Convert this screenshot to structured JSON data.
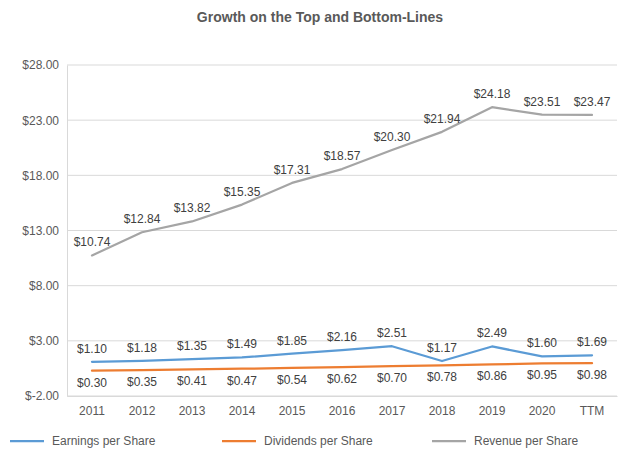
{
  "chart_data": {
    "type": "line",
    "title": "Growth on the Top and Bottom-Lines",
    "categories": [
      "2011",
      "2012",
      "2013",
      "2014",
      "2015",
      "2016",
      "2017",
      "2018",
      "2019",
      "2020",
      "TTM"
    ],
    "series": [
      {
        "name": "Earnings per Share",
        "color": "#5b9bd5",
        "values": [
          1.1,
          1.18,
          1.35,
          1.49,
          1.85,
          2.16,
          2.51,
          1.17,
          2.49,
          1.6,
          1.69
        ],
        "value_labels": [
          "$1.10",
          "$1.18",
          "$1.35",
          "$1.49",
          "$1.85",
          "$2.16",
          "$2.51",
          "$1.17",
          "$2.49",
          "$1.60",
          "$1.69"
        ]
      },
      {
        "name": "Dividends per Share",
        "color": "#ed7d31",
        "values": [
          0.3,
          0.35,
          0.41,
          0.47,
          0.54,
          0.62,
          0.7,
          0.78,
          0.86,
          0.95,
          0.98
        ],
        "value_labels": [
          "$0.30",
          "$0.35",
          "$0.41",
          "$0.47",
          "$0.54",
          "$0.62",
          "$0.70",
          "$0.78",
          "$0.86",
          "$0.95",
          "$0.98"
        ]
      },
      {
        "name": "Revenue per Share",
        "color": "#a5a5a5",
        "values": [
          10.74,
          12.84,
          13.82,
          15.35,
          17.31,
          18.57,
          20.3,
          21.94,
          24.18,
          23.51,
          23.47
        ],
        "value_labels": [
          "$10.74",
          "$12.84",
          "$13.82",
          "$15.35",
          "$17.31",
          "$18.57",
          "$20.30",
          "$21.94",
          "$24.18",
          "$23.51",
          "$23.47"
        ]
      }
    ],
    "ylim": [
      -2,
      28
    ],
    "yticks": [
      {
        "value": -2,
        "label": "$-2.00"
      },
      {
        "value": 3,
        "label": "$3.00"
      },
      {
        "value": 8,
        "label": "$8.00"
      },
      {
        "value": 13,
        "label": "$13.00"
      },
      {
        "value": 18,
        "label": "$18.00"
      },
      {
        "value": 23,
        "label": "$23.00"
      },
      {
        "value": 28,
        "label": "$28.00"
      }
    ],
    "grid": true,
    "legend": "bottom",
    "data_labels": true
  }
}
